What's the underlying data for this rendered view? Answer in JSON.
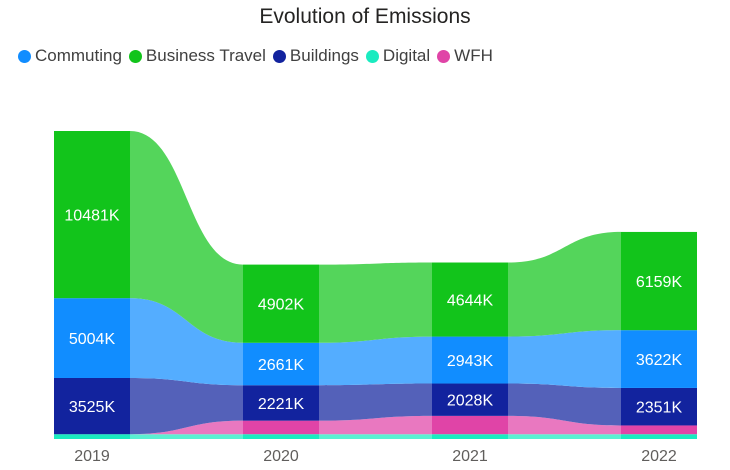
{
  "chart_data": {
    "type": "ribbon",
    "title": "Evolution of Emissions",
    "categories": [
      "2019",
      "2020",
      "2021",
      "2022"
    ],
    "unit_suffix": "K",
    "series": [
      {
        "name": "Commuting",
        "color": "#118dff",
        "values": [
          5004,
          2661,
          2943,
          3622
        ]
      },
      {
        "name": "Business Travel",
        "color": "#12c41b",
        "values": [
          10481,
          4902,
          4644,
          6159
        ]
      },
      {
        "name": "Buildings",
        "color": "#12239e",
        "values": [
          3525,
          2221,
          2028,
          2351
        ]
      },
      {
        "name": "Digital",
        "color": "#1aebc0",
        "values": [
          300,
          300,
          300,
          300
        ]
      },
      {
        "name": "WFH",
        "color": "#e044a7",
        "values": [
          0,
          850,
          1150,
          550
        ]
      }
    ],
    "stack_order_bottom_to_top": [
      "Digital",
      "WFH",
      "Buildings",
      "Commuting",
      "Business Travel"
    ],
    "legend_position": "top-left",
    "grid": false
  }
}
